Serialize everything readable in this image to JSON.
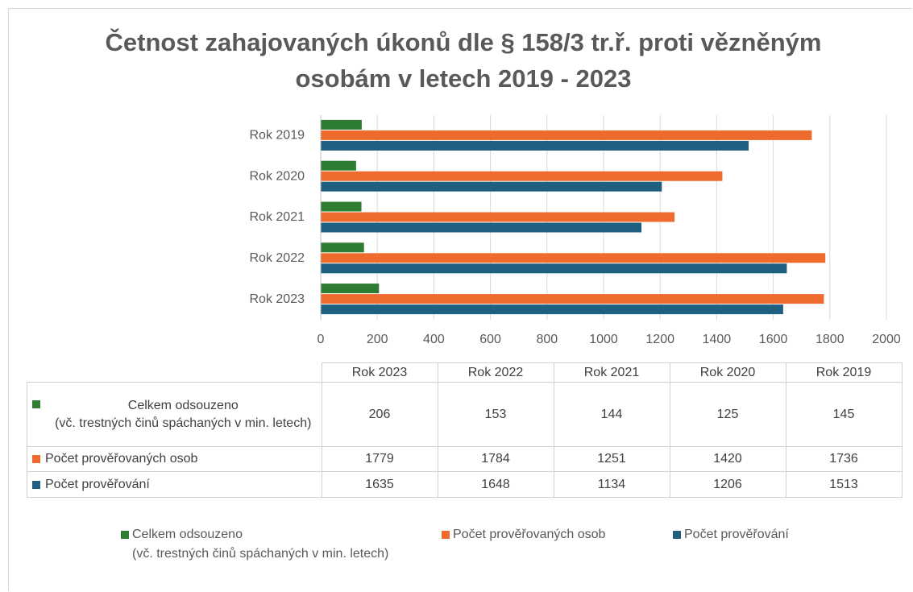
{
  "chart_data": {
    "type": "bar",
    "orientation": "horizontal",
    "title": "Četnost zahajovaných úkonů dle § 158/3 tr.ř. proti vězněným osobám v letech 2019 - 2023",
    "categories": [
      "Rok 2023",
      "Rok 2022",
      "Rok 2021",
      "Rok 2020",
      "Rok 2019"
    ],
    "series": [
      {
        "name": "Celkem odsouzeno\n(vč. trestných činů spáchaných v min. letech)",
        "color": "#2e7d32",
        "values": [
          206,
          153,
          144,
          125,
          145
        ]
      },
      {
        "name": "Počet prověřovaných osob",
        "color": "#ee6b2d",
        "values": [
          1779,
          1784,
          1251,
          1420,
          1736
        ]
      },
      {
        "name": "Počet prověřování",
        "color": "#1f5f80",
        "values": [
          1635,
          1648,
          1134,
          1206,
          1513
        ]
      }
    ],
    "xlim": [
      0,
      2000
    ],
    "xticks": [
      0,
      200,
      400,
      600,
      800,
      1000,
      1200,
      1400,
      1600,
      1800,
      2000
    ],
    "grid": true,
    "legend": "bottom",
    "data_table": true
  }
}
